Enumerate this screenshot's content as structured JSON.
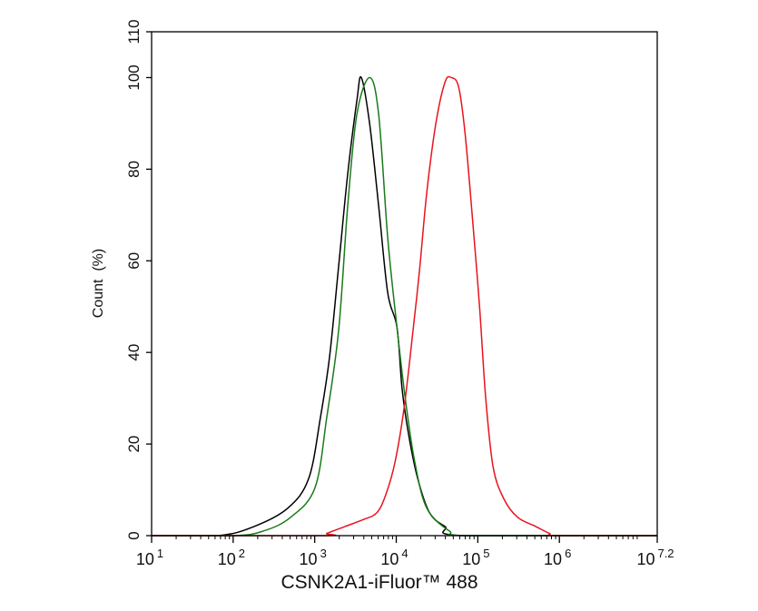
{
  "chart_data": {
    "type": "line",
    "title": "",
    "xlabel": "CSNK2A1-iFluor™ 488",
    "ylabel": "Count  (%)",
    "x_scale": "log",
    "xlim": [
      10,
      15848932
    ],
    "ylim": [
      0,
      110
    ],
    "grid": false,
    "x_ticks": [
      {
        "base": "10",
        "exp": "1",
        "value": 10
      },
      {
        "base": "10",
        "exp": "2",
        "value": 100
      },
      {
        "base": "10",
        "exp": "3",
        "value": 1000
      },
      {
        "base": "10",
        "exp": "4",
        "value": 10000
      },
      {
        "base": "10",
        "exp": "5",
        "value": 100000
      },
      {
        "base": "10",
        "exp": "6",
        "value": 1000000
      },
      {
        "base": "10",
        "exp": "7.2",
        "value": 15848932
      }
    ],
    "y_ticks": [
      "0",
      "20",
      "40",
      "60",
      "80",
      "100",
      "110"
    ],
    "series": [
      {
        "color": "#000000",
        "x": [
          10,
          65,
          181,
          468,
          845,
          1180,
          1520,
          1970,
          2540,
          3290,
          3730,
          4710,
          6080,
          7860,
          10200,
          11800,
          14200,
          18300,
          25600,
          39600,
          66100,
          15848932
        ],
        "y": [
          0,
          0,
          2,
          6,
          12.5,
          26,
          39,
          59,
          79,
          95,
          100,
          90,
          72,
          53,
          45.5,
          32,
          22,
          12.5,
          5,
          2,
          0,
          0
        ]
      },
      {
        "color": "#1a7a1a",
        "x": [
          10,
          100,
          234,
          506,
          1010,
          1410,
          1970,
          2540,
          3290,
          4710,
          6080,
          7860,
          10200,
          13100,
          16900,
          23700,
          45000,
          75000,
          15848932
        ],
        "y": [
          0,
          0,
          1,
          4,
          10.5,
          26,
          45,
          72,
          92,
          100,
          92,
          65,
          45.5,
          29,
          16,
          6,
          1,
          0,
          0
        ]
      },
      {
        "color": "#e8141c",
        "x": [
          10,
          1240,
          1410,
          2360,
          3930,
          5780,
          7460,
          9640,
          12500,
          16100,
          19300,
          23700,
          30600,
          39600,
          47300,
          58100,
          69600,
          85300,
          105000,
          125000,
          154000,
          209000,
          308000,
          514000,
          754000,
          975000,
          15848932
        ],
        "y": [
          0,
          0,
          0.5,
          2,
          3.5,
          5,
          9,
          16,
          28,
          45,
          58,
          75,
          90,
          99,
          100,
          98,
          88,
          70,
          50,
          30,
          15,
          8,
          4,
          2,
          0.5,
          0,
          0
        ]
      }
    ]
  }
}
